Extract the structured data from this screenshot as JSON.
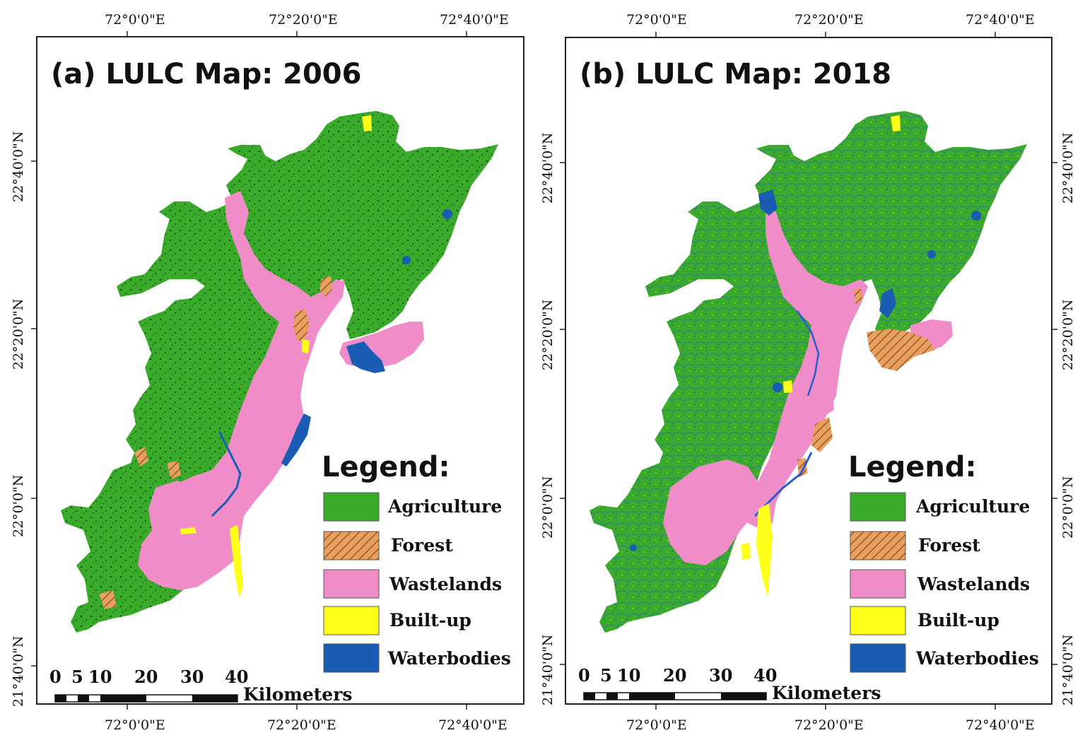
{
  "colors": {
    "agriculture": "#3aaa2a",
    "forest": "#e8a060",
    "forest_hatch": "#9a5a20",
    "wastelands": "#f08cc8",
    "builtup": "#ffff1a",
    "waterbodies": "#1a5cb4",
    "frame": "#222222"
  },
  "panels": [
    {
      "title": "(a) LULC Map: 2006",
      "legend": {
        "title": "Legend:",
        "items": [
          {
            "label": "Agriculture",
            "color": "agriculture"
          },
          {
            "label": "Forest",
            "color": "forest"
          },
          {
            "label": "Wastelands",
            "color": "wastelands"
          },
          {
            "label": "Built-up",
            "color": "builtup"
          },
          {
            "label": "Waterbodies",
            "color": "waterbodies"
          }
        ]
      },
      "scale_bar": {
        "ticks": [
          "0",
          "5",
          "10",
          "20",
          "30",
          "40"
        ],
        "unit": "Kilometers"
      },
      "lon_labels": [
        "72°0'0\"E",
        "72°20'0\"E",
        "72°40'0\"E"
      ],
      "lat_labels": [
        "22°40'0\"N",
        "22°20'0\"N",
        "22°0'0\"N",
        "21°40'0\"N"
      ]
    },
    {
      "title": "(b) LULC Map: 2018",
      "legend": {
        "title": "Legend:",
        "items": [
          {
            "label": "Agriculture",
            "color": "agriculture"
          },
          {
            "label": "Forest",
            "color": "forest"
          },
          {
            "label": "Wastelands",
            "color": "wastelands"
          },
          {
            "label": "Built-up",
            "color": "builtup"
          },
          {
            "label": "Waterbodies",
            "color": "waterbodies"
          }
        ]
      },
      "scale_bar": {
        "ticks": [
          "0",
          "5",
          "10",
          "20",
          "30",
          "40"
        ],
        "unit": "Kilometers"
      },
      "lon_labels": [
        "72°0'0\"E",
        "72°20'0\"E",
        "72°40'0\"E"
      ],
      "lat_labels": [
        "22°40'0\"N",
        "22°20'0\"N",
        "22°0'0\"N",
        "21°40'0\"N"
      ]
    }
  ]
}
